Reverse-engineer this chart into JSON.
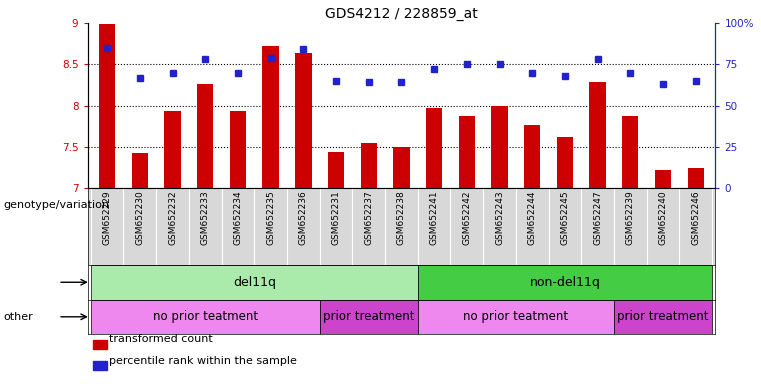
{
  "title": "GDS4212 / 228859_at",
  "samples": [
    "GSM652229",
    "GSM652230",
    "GSM652232",
    "GSM652233",
    "GSM652234",
    "GSM652235",
    "GSM652236",
    "GSM652231",
    "GSM652237",
    "GSM652238",
    "GSM652241",
    "GSM652242",
    "GSM652243",
    "GSM652244",
    "GSM652245",
    "GSM652247",
    "GSM652239",
    "GSM652240",
    "GSM652246"
  ],
  "bar_values": [
    8.99,
    7.43,
    7.93,
    8.26,
    7.93,
    8.72,
    8.64,
    7.44,
    7.55,
    7.5,
    7.97,
    7.88,
    8.0,
    7.76,
    7.62,
    8.28,
    7.87,
    7.22,
    7.25
  ],
  "dot_values": [
    85,
    67,
    70,
    78,
    70,
    79,
    84,
    65,
    64,
    64,
    72,
    75,
    75,
    70,
    68,
    78,
    70,
    63,
    65
  ],
  "ylim_left": [
    7.0,
    9.0
  ],
  "ylim_right": [
    0,
    100
  ],
  "yticks_left": [
    7.0,
    7.5,
    8.0,
    8.5,
    9.0
  ],
  "yticks_right": [
    0,
    25,
    50,
    75,
    100
  ],
  "ytick_labels_right": [
    "0",
    "25",
    "50",
    "75",
    "100%"
  ],
  "bar_color": "#cc0000",
  "dot_color": "#2222cc",
  "bar_bottom": 7.0,
  "hgrid_vals": [
    7.5,
    8.0,
    8.5
  ],
  "genotype_groups": [
    {
      "label": "del11q",
      "start": 0,
      "end": 10,
      "color": "#aaeaaa"
    },
    {
      "label": "non-del11q",
      "start": 10,
      "end": 19,
      "color": "#44cc44"
    }
  ],
  "other_groups": [
    {
      "label": "no prior teatment",
      "start": 0,
      "end": 7,
      "color": "#ee88ee"
    },
    {
      "label": "prior treatment",
      "start": 7,
      "end": 10,
      "color": "#cc44cc"
    },
    {
      "label": "no prior teatment",
      "start": 10,
      "end": 16,
      "color": "#ee88ee"
    },
    {
      "label": "prior treatment",
      "start": 16,
      "end": 19,
      "color": "#cc44cc"
    }
  ],
  "legend_items": [
    {
      "label": "transformed count",
      "color": "#cc0000"
    },
    {
      "label": "percentile rank within the sample",
      "color": "#2222cc"
    }
  ],
  "label_row1": "genotype/variation",
  "label_row2": "other",
  "plot_bg_color": "#ffffff",
  "sample_bg_color": "#d8d8d8",
  "bar_width": 0.5
}
